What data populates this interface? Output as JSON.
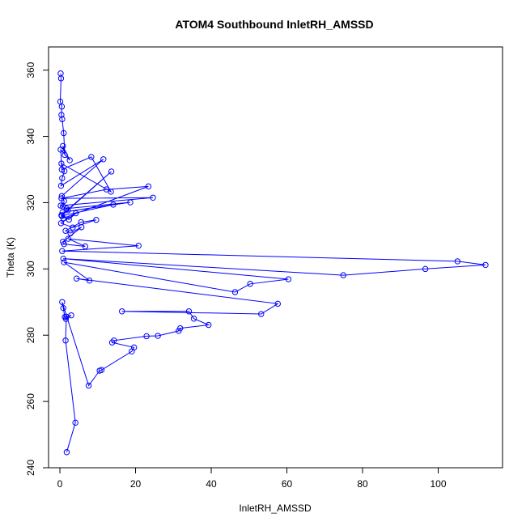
{
  "chart_data": {
    "type": "line",
    "title": "ATOM4 Southbound InletRH_AMSSD",
    "xlabel": "InletRH_AMSSD",
    "ylabel": "Theta (K)",
    "xlim": [
      -3,
      117
    ],
    "ylim": [
      240,
      367
    ],
    "x_ticks": [
      "0",
      "20",
      "40",
      "60",
      "80",
      "100"
    ],
    "y_ticks": [
      "240",
      "260",
      "280",
      "300",
      "320",
      "340",
      "360"
    ],
    "x_tick_values": [
      0,
      20,
      40,
      60,
      80,
      100
    ],
    "y_tick_values": [
      240,
      260,
      280,
      300,
      320,
      340,
      360
    ],
    "grid": false,
    "series": [
      {
        "color": "#0000ff",
        "marker": "open-circle",
        "x": [
          0.2,
          0.3,
          0.1,
          0.5,
          0.4,
          0.6,
          1.0,
          1.3,
          0.8,
          2.6,
          0.2,
          0.5,
          8.3,
          13.5,
          0.4,
          1.2,
          0.6,
          0.3,
          11.5,
          0.5,
          1.1,
          0.8,
          2.1,
          13.6,
          0.4,
          0.9,
          23.4,
          12.3,
          0.4,
          24.6,
          0.2,
          1.8,
          18.6,
          0.7,
          14.1,
          0.5,
          2.4,
          4.2,
          0.3,
          3.4,
          9.6,
          5.6,
          1.5,
          2.8,
          5.7,
          0.8,
          1.1,
          6.7,
          2.2,
          20.8,
          0.6,
          105.1,
          112.5,
          96.6,
          74.9,
          0.9,
          60.4,
          50.3,
          46.3,
          1.1,
          7.8,
          4.4,
          57.6,
          53.2,
          16.4,
          34.1,
          35.4,
          39.3,
          31.8,
          31.4,
          25.9,
          22.9,
          14.3,
          13.8,
          19.6,
          19.0,
          11.0,
          10.5,
          7.6,
          0.6,
          0.9,
          1.3,
          1.6,
          3.0,
          1.7,
          1.5,
          4.1,
          1.8
        ],
        "y": [
          359.0,
          357.5,
          350.5,
          349.0,
          346.5,
          345.2,
          341.0,
          334.4,
          337.1,
          332.8,
          336.0,
          330.0,
          333.8,
          323.3,
          331.8,
          329.5,
          327.4,
          325.1,
          333.1,
          322.0,
          320.5,
          318.9,
          317.7,
          329.4,
          316.2,
          315.3,
          324.9,
          324.0,
          321.3,
          321.5,
          319.1,
          318.2,
          320.1,
          317.1,
          319.4,
          316.0,
          314.9,
          316.8,
          313.8,
          312.5,
          314.8,
          314.1,
          311.5,
          310.8,
          312.6,
          308.2,
          307.5,
          306.8,
          309.1,
          307.0,
          305.4,
          302.3,
          301.2,
          300.0,
          298.1,
          303.1,
          296.9,
          295.5,
          293.0,
          302.0,
          296.5,
          297.1,
          289.5,
          286.4,
          287.2,
          287.2,
          285.0,
          283.1,
          282.1,
          281.3,
          279.8,
          279.7,
          278.4,
          277.8,
          276.3,
          275.1,
          269.5,
          269.3,
          264.8,
          290.0,
          288.2,
          285.5,
          284.9,
          286.0,
          285.6,
          278.4,
          253.6,
          244.7
        ]
      }
    ]
  }
}
